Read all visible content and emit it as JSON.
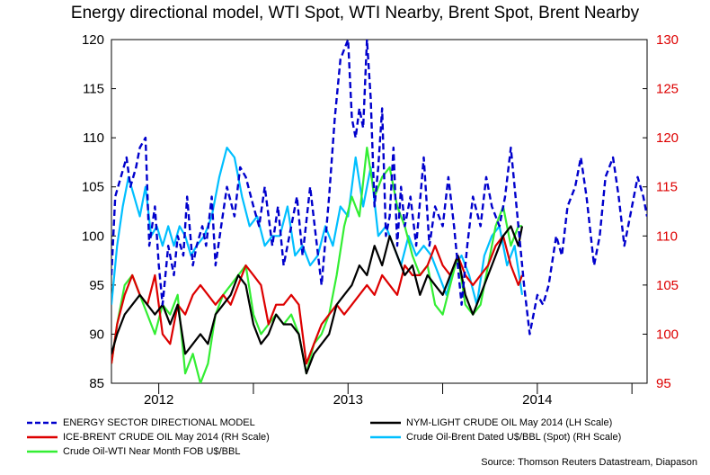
{
  "title": "Energy directional model, WTI Spot, WTI Nearby, Brent Spot, Brent Nearby",
  "source": "Source: Thomson Reuters Datastream, Diapason",
  "chart_data": {
    "type": "line",
    "left_axis": {
      "min": 85,
      "max": 120,
      "ticks": [
        85,
        90,
        95,
        100,
        105,
        110,
        115,
        120
      ],
      "color": "#000000"
    },
    "right_axis": {
      "min": 95,
      "max": 130,
      "ticks": [
        95,
        100,
        105,
        110,
        115,
        120,
        125,
        130
      ],
      "color": "#dd0000"
    },
    "x_range": [
      2011.75,
      2014.58
    ],
    "x_ticks": [
      {
        "label": "2012",
        "x": 2012.0
      },
      {
        "label": "2013",
        "x": 2013.0
      },
      {
        "label": "2014",
        "x": 2014.0
      }
    ],
    "x_minor_ticks": [
      2012.5,
      2013.5,
      2014.5
    ],
    "grid": false,
    "legend": "bottom",
    "series": [
      {
        "name": "ENERGY SECTOR DIRECTIONAL MODEL",
        "axis": "left",
        "color": "#0000cc",
        "dashed": true,
        "x": [
          2011.75,
          2011.77,
          2011.8,
          2011.83,
          2011.85,
          2011.88,
          2011.9,
          2011.93,
          2011.95,
          2011.98,
          2012.0,
          2012.02,
          2012.05,
          2012.08,
          2012.1,
          2012.13,
          2012.15,
          2012.18,
          2012.2,
          2012.23,
          2012.25,
          2012.28,
          2012.3,
          2012.33,
          2012.36,
          2012.4,
          2012.43,
          2012.46,
          2012.5,
          2012.53,
          2012.56,
          2012.6,
          2012.63,
          2012.66,
          2012.7,
          2012.73,
          2012.76,
          2012.8,
          2012.83,
          2012.86,
          2012.9,
          2012.93,
          2012.96,
          2012.98,
          2013.0,
          2013.02,
          2013.04,
          2013.06,
          2013.08,
          2013.1,
          2013.12,
          2013.14,
          2013.16,
          2013.18,
          2013.2,
          2013.22,
          2013.24,
          2013.26,
          2013.28,
          2013.3,
          2013.33,
          2013.36,
          2013.4,
          2013.43,
          2013.46,
          2013.5,
          2013.53,
          2013.56,
          2013.6,
          2013.63,
          2013.66,
          2013.7,
          2013.73,
          2013.76,
          2013.8,
          2013.83,
          2013.86,
          2013.9,
          2013.93,
          2013.96,
          2014.0,
          2014.03,
          2014.06,
          2014.1,
          2014.13,
          2014.16,
          2014.2,
          2014.23,
          2014.26,
          2014.3,
          2014.33,
          2014.36,
          2014.4,
          2014.43,
          2014.46,
          2014.5,
          2014.53,
          2014.56,
          2014.58
        ],
        "y": [
          96,
          104,
          106,
          108,
          105,
          107,
          109,
          110,
          99,
          103,
          97,
          93,
          99,
          96,
          100,
          98,
          104,
          97,
          99,
          101,
          99,
          104,
          97,
          101,
          105,
          102,
          107,
          106,
          103,
          101,
          105,
          99,
          103,
          97,
          101,
          104,
          98,
          105,
          100,
          95,
          104,
          112,
          118,
          119,
          120,
          112,
          110,
          113,
          111,
          120,
          114,
          103,
          107,
          113,
          100,
          102,
          109,
          99,
          105,
          101,
          104,
          99,
          108,
          99,
          103,
          101,
          106,
          101,
          93,
          99,
          104,
          101,
          106,
          103,
          101,
          104,
          109,
          101,
          95,
          90,
          94,
          93,
          95,
          100,
          98,
          103,
          105,
          108,
          104,
          97,
          100,
          106,
          108,
          104,
          99,
          103,
          106,
          104,
          102
        ]
      },
      {
        "name": "NYM-LIGHT CRUDE OIL May 2014 (LH Scale)",
        "axis": "left",
        "color": "#000000",
        "dashed": false,
        "x": [
          2011.75,
          2011.78,
          2011.82,
          2011.86,
          2011.9,
          2011.94,
          2011.98,
          2012.02,
          2012.06,
          2012.1,
          2012.14,
          2012.18,
          2012.22,
          2012.26,
          2012.3,
          2012.34,
          2012.38,
          2012.42,
          2012.46,
          2012.5,
          2012.54,
          2012.58,
          2012.62,
          2012.66,
          2012.7,
          2012.74,
          2012.78,
          2012.82,
          2012.86,
          2012.9,
          2012.94,
          2012.98,
          2013.02,
          2013.06,
          2013.1,
          2013.14,
          2013.18,
          2013.22,
          2013.26,
          2013.3,
          2013.34,
          2013.38,
          2013.42,
          2013.46,
          2013.5,
          2013.54,
          2013.58,
          2013.62,
          2013.66,
          2013.7,
          2013.74,
          2013.78,
          2013.82,
          2013.86,
          2013.9,
          2013.92
        ],
        "y": [
          88,
          90,
          92,
          93,
          94,
          93,
          92,
          93,
          91,
          93,
          88,
          89,
          90,
          89,
          92,
          93,
          94,
          96,
          95,
          91,
          89,
          90,
          92,
          91,
          91,
          90,
          86,
          88,
          89,
          90,
          93,
          94,
          95,
          97,
          96,
          99,
          97,
          100,
          98,
          96,
          97,
          94,
          96,
          95,
          94,
          96,
          98,
          94,
          92,
          94,
          96,
          98,
          100,
          101,
          99,
          101
        ]
      },
      {
        "name": "ICE-BRENT CRUDE OIL May 2014 (RH Scale)",
        "axis": "right",
        "color": "#dd0000",
        "dashed": false,
        "x": [
          2011.75,
          2011.78,
          2011.82,
          2011.86,
          2011.9,
          2011.94,
          2011.98,
          2012.02,
          2012.06,
          2012.1,
          2012.14,
          2012.18,
          2012.22,
          2012.26,
          2012.3,
          2012.34,
          2012.38,
          2012.42,
          2012.46,
          2012.5,
          2012.54,
          2012.58,
          2012.62,
          2012.66,
          2012.7,
          2012.74,
          2012.78,
          2012.82,
          2012.86,
          2012.9,
          2012.94,
          2012.98,
          2013.02,
          2013.06,
          2013.1,
          2013.14,
          2013.18,
          2013.22,
          2013.26,
          2013.3,
          2013.34,
          2013.38,
          2013.42,
          2013.46,
          2013.5,
          2013.54,
          2013.58,
          2013.62,
          2013.66,
          2013.7,
          2013.74,
          2013.78,
          2013.82,
          2013.86,
          2013.9,
          2013.92
        ],
        "y": [
          97,
          101,
          104,
          106,
          104,
          103,
          106,
          100,
          99,
          103,
          102,
          104,
          105,
          104,
          103,
          104,
          103,
          105,
          107,
          106,
          105,
          101,
          103,
          103,
          104,
          103,
          97,
          99,
          101,
          102,
          103,
          102,
          103,
          104,
          105,
          104,
          106,
          105,
          104,
          107,
          106,
          106,
          107,
          109,
          107,
          106,
          108,
          106,
          105,
          106,
          107,
          109,
          110,
          107,
          105,
          106
        ]
      },
      {
        "name": "Crude Oil-Brent Dated U$/BBL (Spot) (RH Scale)",
        "axis": "right",
        "color": "#00bfff",
        "dashed": false,
        "x": [
          2011.75,
          2011.78,
          2011.81,
          2011.84,
          2011.87,
          2011.9,
          2011.93,
          2011.96,
          2011.99,
          2012.02,
          2012.05,
          2012.08,
          2012.11,
          2012.14,
          2012.17,
          2012.2,
          2012.24,
          2012.28,
          2012.32,
          2012.36,
          2012.4,
          2012.44,
          2012.48,
          2012.52,
          2012.56,
          2012.6,
          2012.64,
          2012.68,
          2012.72,
          2012.76,
          2012.8,
          2012.84,
          2012.88,
          2012.92,
          2012.96,
          2013.0,
          2013.04,
          2013.08,
          2013.12,
          2013.16,
          2013.2,
          2013.24,
          2013.28,
          2013.32,
          2013.36,
          2013.4,
          2013.44,
          2013.48,
          2013.52,
          2013.56,
          2013.6,
          2013.64,
          2013.68,
          2013.72,
          2013.76,
          2013.8,
          2013.84,
          2013.88,
          2013.92
        ],
        "y": [
          103,
          109,
          113,
          116,
          114,
          112,
          115,
          110,
          111,
          109,
          111,
          109,
          111,
          110,
          108,
          109,
          110,
          112,
          116,
          119,
          118,
          114,
          111,
          112,
          109,
          110,
          110,
          113,
          108,
          109,
          107,
          108,
          111,
          109,
          113,
          112,
          118,
          113,
          117,
          110,
          111,
          109,
          107,
          110,
          108,
          109,
          108,
          106,
          104,
          107,
          108,
          106,
          103,
          108,
          110,
          111,
          107,
          109,
          104
        ]
      },
      {
        "name": "Crude Oil-WTI Near Month FOB U$/BBL",
        "axis": "left",
        "color": "#33ee33",
        "dashed": false,
        "x": [
          2011.75,
          2011.78,
          2011.82,
          2011.86,
          2011.9,
          2011.94,
          2011.98,
          2012.02,
          2012.06,
          2012.1,
          2012.14,
          2012.18,
          2012.22,
          2012.26,
          2012.3,
          2012.34,
          2012.38,
          2012.42,
          2012.46,
          2012.5,
          2012.54,
          2012.58,
          2012.62,
          2012.66,
          2012.7,
          2012.74,
          2012.78,
          2012.82,
          2012.86,
          2012.9,
          2012.94,
          2012.98,
          2013.02,
          2013.06,
          2013.1,
          2013.14,
          2013.18,
          2013.22,
          2013.26,
          2013.3,
          2013.34,
          2013.38,
          2013.42,
          2013.46,
          2013.5,
          2013.54,
          2013.58,
          2013.62,
          2013.66,
          2013.7,
          2013.74,
          2013.78,
          2013.82,
          2013.86,
          2013.9,
          2013.92
        ],
        "y": [
          87,
          91,
          95,
          96,
          94,
          92,
          90,
          93,
          92,
          94,
          86,
          88,
          85,
          87,
          92,
          94,
          95,
          96,
          97,
          92,
          90,
          91,
          92,
          91,
          92,
          90,
          86,
          89,
          90,
          92,
          96,
          101,
          104,
          102,
          109,
          104,
          106,
          107,
          103,
          101,
          98,
          96,
          97,
          93,
          92,
          95,
          98,
          93,
          92,
          93,
          97,
          101,
          103,
          99,
          101,
          101
        ]
      }
    ]
  }
}
